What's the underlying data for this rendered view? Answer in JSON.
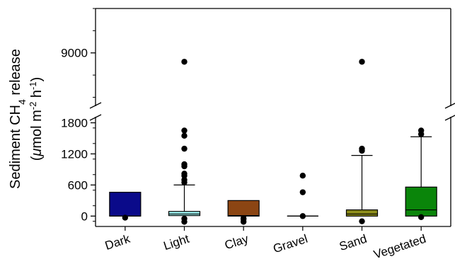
{
  "chart_data": {
    "type": "box",
    "title": "",
    "ylabel": {
      "line1": {
        "pre": "Sediment CH",
        "sub": "4",
        "post": " release"
      },
      "line2": {
        "pre": "(",
        "mu": "μ",
        "mid": "mol m",
        "sup1": "-2",
        "mid2": " h",
        "sup2": "-1",
        "post": ")"
      }
    },
    "xlabel": "",
    "categories": [
      "Dark",
      "Light",
      "Clay",
      "Gravel",
      "Sand",
      "Vegetated"
    ],
    "y_axis": {
      "broken": true,
      "lower_segment": {
        "min": -200,
        "max": 1800,
        "ticks": [
          0,
          600,
          1200,
          1800
        ]
      },
      "upper_segment": {
        "min": 7800,
        "max": 10000,
        "ticks": [
          9000
        ]
      },
      "tick_labels": [
        "0",
        "600",
        "1200",
        "1800",
        "9000"
      ]
    },
    "boxes": [
      {
        "category": "Dark",
        "color": "#0a0a8a",
        "q1": 0,
        "median": 0,
        "q3": 460,
        "whisker_low": 0,
        "whisker_high": 460,
        "outliers": [
          -30
        ]
      },
      {
        "category": "Light",
        "color": "#9ff5f2",
        "q1": 10,
        "median": 40,
        "q3": 90,
        "whisker_low": 0,
        "whisker_high": 600,
        "outliers": [
          -110,
          -50,
          650,
          700,
          780,
          820,
          960,
          1000,
          1300,
          1550,
          1650,
          8800
        ]
      },
      {
        "category": "Clay",
        "color": "#8b4513",
        "q1": 0,
        "median": 10,
        "q3": 300,
        "whisker_low": 0,
        "whisker_high": 300,
        "outliers": [
          -110,
          -60,
          -40
        ]
      },
      {
        "category": "Gravel",
        "color": "#cfcfcf",
        "q1": 0,
        "median": 0,
        "q3": 0,
        "whisker_low": 0,
        "whisker_high": 0,
        "outliers": [
          0,
          460,
          780
        ]
      },
      {
        "category": "Sand",
        "color": "#8b8b1a",
        "q1": 0,
        "median": 40,
        "q3": 120,
        "whisker_low": 0,
        "whisker_high": 1170,
        "outliers": [
          -100,
          1260,
          1300,
          8800
        ]
      },
      {
        "category": "Vegetated",
        "color": "#0a850a",
        "q1": 0,
        "median": 120,
        "q3": 560,
        "whisker_low": 0,
        "whisker_high": 1530,
        "outliers": [
          -20,
          1580,
          1650
        ]
      }
    ],
    "grid": false,
    "legend": "none"
  }
}
